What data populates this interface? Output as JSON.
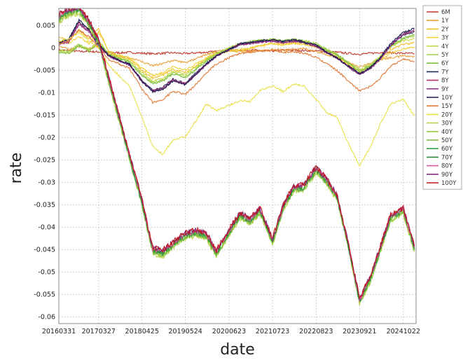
{
  "chart_data": {
    "type": "line",
    "xlabel": "date",
    "ylabel": "rate",
    "ylim": [
      -0.0615,
      0.0088
    ],
    "yticks": [
      0.005,
      0,
      -0.005,
      -0.01,
      -0.015,
      -0.02,
      -0.025,
      -0.03,
      -0.035,
      -0.04,
      -0.045,
      -0.05,
      -0.055,
      -0.06
    ],
    "ytick_labels": [
      "0.005",
      "0",
      "-0.005",
      "-0.01",
      "-0.015",
      "-0.02",
      "-0.025",
      "-0.03",
      "-0.035",
      "-0.04",
      "-0.045",
      "-0.05",
      "-0.055",
      "-0.06"
    ],
    "x_dates": [
      "2016-03-31",
      "2016-06-30",
      "2016-09-30",
      "2016-12-31",
      "2017-03-27",
      "2017-06-30",
      "2017-09-30",
      "2017-12-31",
      "2018-04-25",
      "2018-07-31",
      "2018-10-31",
      "2019-01-31",
      "2019-05-24",
      "2019-08-31",
      "2019-11-30",
      "2020-02-29",
      "2020-06-23",
      "2020-09-30",
      "2020-12-31",
      "2021-03-31",
      "2021-07-23",
      "2021-10-31",
      "2022-01-31",
      "2022-04-30",
      "2022-08-23",
      "2022-11-30",
      "2023-02-28",
      "2023-05-31",
      "2023-09-21",
      "2023-12-31",
      "2024-03-31",
      "2024-06-30",
      "2024-10-22",
      "2025-01-31"
    ],
    "xticks": [
      "20160331",
      "20170327",
      "20180425",
      "20190524",
      "20200623",
      "20210723",
      "20220823",
      "20230921",
      "20241022"
    ],
    "grid": true,
    "legend_placement": "right",
    "series": [
      {
        "name": "6M",
        "color": "#c0392b",
        "values": [
          -0.0005,
          -0.0006,
          -0.0008,
          -0.0008,
          -0.0009,
          -0.001,
          -0.0011,
          -0.001,
          -0.0012,
          -0.0013,
          -0.0012,
          -0.0011,
          -0.0013,
          -0.0011,
          -0.001,
          -0.0008,
          -0.0006,
          -0.0005,
          -0.0005,
          -0.0006,
          -0.0007,
          -0.0005,
          -0.0005,
          -0.0006,
          -0.0007,
          -0.0008,
          -0.001,
          -0.0012,
          -0.0014,
          -0.0012,
          -0.001,
          -0.0011,
          -0.0012,
          -0.0013
        ]
      },
      {
        "name": "1Y",
        "color": "#e8a33d",
        "values": [
          0.0005,
          -0.0004,
          0.0003,
          -0.0002,
          0.0004,
          -0.0012,
          -0.0018,
          -0.0022,
          -0.0031,
          -0.004,
          -0.0035,
          -0.0028,
          -0.0033,
          -0.0024,
          -0.0015,
          -0.0008,
          -0.0005,
          -0.0006,
          -0.0007,
          -0.0006,
          -0.0004,
          -0.0005,
          -0.0003,
          -0.0002,
          -0.0008,
          -0.0016,
          -0.0021,
          -0.0031,
          -0.0042,
          -0.0035,
          -0.0026,
          -0.0022,
          -0.0018,
          -0.002
        ]
      },
      {
        "name": "2Y",
        "color": "#f0c02e",
        "values": [
          0.0025,
          0.0015,
          0.004,
          0.002,
          0.0042,
          -0.0012,
          -0.0018,
          -0.0025,
          -0.005,
          -0.0068,
          -0.006,
          -0.0048,
          -0.0055,
          -0.004,
          -0.0025,
          -0.0012,
          -0.0008,
          -0.0008,
          -0.0002,
          0.0005,
          0.001,
          0.0008,
          0.0012,
          0.001,
          0.0005,
          -0.001,
          -0.0018,
          -0.0035,
          -0.0055,
          -0.004,
          -0.0022,
          -0.0005,
          0.0008,
          0.0012
        ]
      },
      {
        "name": "3Y",
        "color": "#f2d33a",
        "values": [
          0.0015,
          0.001,
          0.0025,
          0.001,
          0.0035,
          -0.0008,
          -0.0016,
          -0.0022,
          -0.0045,
          -0.0062,
          -0.0055,
          -0.0042,
          -0.005,
          -0.0035,
          -0.0022,
          -0.0012,
          -0.0006,
          -0.0004,
          0.0,
          0.0004,
          0.0008,
          0.0006,
          0.001,
          0.0008,
          0.0002,
          -0.0012,
          -0.002,
          -0.0036,
          -0.0052,
          -0.0042,
          -0.0026,
          -0.0012,
          -0.0002,
          0.0002
        ]
      },
      {
        "name": "4Y",
        "color": "#c8d84e",
        "values": [
          -0.0008,
          -0.001,
          0.0005,
          -0.0006,
          0.0012,
          -0.0014,
          -0.0022,
          -0.0028,
          -0.0055,
          -0.0075,
          -0.0068,
          -0.0052,
          -0.006,
          -0.0042,
          -0.0026,
          -0.0012,
          0.0,
          0.0008,
          0.0012,
          0.0016,
          0.0018,
          0.0014,
          0.0018,
          0.0015,
          0.0008,
          -0.0006,
          -0.0016,
          -0.0032,
          -0.0048,
          -0.0036,
          -0.0018,
          0.0002,
          0.0016,
          0.002
        ]
      },
      {
        "name": "5Y",
        "color": "#a8cf4a",
        "values": [
          -0.0005,
          -0.0008,
          0.0008,
          -0.0004,
          0.0015,
          -0.0014,
          -0.0023,
          -0.003,
          -0.006,
          -0.0078,
          -0.0072,
          -0.0055,
          -0.0064,
          -0.0046,
          -0.0028,
          -0.0014,
          0.0,
          0.001,
          0.0014,
          0.0018,
          0.0019,
          0.0016,
          0.002,
          0.0016,
          0.001,
          -0.0004,
          -0.0014,
          -0.003,
          -0.005,
          -0.0038,
          -0.002,
          0.0004,
          0.002,
          0.0026
        ]
      },
      {
        "name": "6Y",
        "color": "#7cc142",
        "values": [
          -0.001,
          -0.0012,
          0.0005,
          -0.0008,
          0.0012,
          -0.0016,
          -0.0025,
          -0.0032,
          -0.0062,
          -0.008,
          -0.0074,
          -0.0058,
          -0.0066,
          -0.0048,
          -0.003,
          -0.0016,
          -0.0002,
          0.0008,
          0.0012,
          0.0016,
          0.0018,
          0.0015,
          0.0018,
          0.0015,
          0.0008,
          -0.0006,
          -0.0016,
          -0.0032,
          -0.0052,
          -0.004,
          -0.002,
          0.0004,
          0.0022,
          0.003
        ]
      },
      {
        "name": "7Y",
        "color": "#1f2f5f",
        "values": [
          0.0012,
          0.0018,
          0.0058,
          0.004,
          0.0008,
          -0.0018,
          -0.0028,
          -0.0036,
          -0.0072,
          -0.0095,
          -0.0088,
          -0.007,
          -0.0078,
          -0.0056,
          -0.0035,
          -0.0018,
          -0.0004,
          0.0008,
          0.001,
          0.0014,
          0.0016,
          0.0012,
          0.0016,
          0.0012,
          0.0004,
          -0.001,
          -0.0022,
          -0.0038,
          -0.0058,
          -0.0044,
          -0.0022,
          0.0006,
          0.0028,
          0.0036
        ]
      },
      {
        "name": "8Y",
        "color": "#b0306a",
        "values": [
          0.001,
          0.0015,
          0.0055,
          0.0038,
          0.0006,
          -0.0018,
          -0.0028,
          -0.0037,
          -0.0074,
          -0.0096,
          -0.009,
          -0.0072,
          -0.008,
          -0.0058,
          -0.0036,
          -0.0018,
          -0.0004,
          0.0008,
          0.001,
          0.0013,
          0.0015,
          0.0012,
          0.0015,
          0.0012,
          0.0004,
          -0.0011,
          -0.0023,
          -0.0039,
          -0.0059,
          -0.0045,
          -0.0023,
          0.0006,
          0.003,
          0.0038
        ]
      },
      {
        "name": "9Y",
        "color": "#8e3a8e",
        "values": [
          0.0008,
          0.0013,
          0.0052,
          0.0036,
          0.0005,
          -0.0019,
          -0.0029,
          -0.0038,
          -0.0075,
          -0.0097,
          -0.0091,
          -0.0073,
          -0.0081,
          -0.0059,
          -0.0037,
          -0.0019,
          -0.0005,
          0.0007,
          0.001,
          0.0013,
          0.0015,
          0.0012,
          0.0015,
          0.0012,
          0.0004,
          -0.0011,
          -0.0023,
          -0.004,
          -0.006,
          -0.0046,
          -0.0024,
          0.0006,
          0.0031,
          0.004
        ]
      },
      {
        "name": "10Y",
        "color": "#1a1a4f",
        "values": [
          0.0012,
          0.002,
          0.0062,
          0.0042,
          0.0008,
          -0.0018,
          -0.0028,
          -0.0036,
          -0.0075,
          -0.0098,
          -0.0092,
          -0.0074,
          -0.0082,
          -0.0058,
          -0.0036,
          -0.0018,
          -0.0004,
          0.0009,
          0.0012,
          0.0016,
          0.0018,
          0.0014,
          0.0018,
          0.0014,
          0.0006,
          -0.001,
          -0.0022,
          -0.0038,
          -0.0058,
          -0.0044,
          -0.002,
          0.001,
          0.0034,
          0.0044
        ]
      },
      {
        "name": "15Y",
        "color": "#e07b39",
        "values": [
          0.001,
          0.0015,
          0.004,
          0.0025,
          0.0,
          -0.0026,
          -0.0036,
          -0.0046,
          -0.0092,
          -0.0122,
          -0.0116,
          -0.0096,
          -0.0104,
          -0.008,
          -0.0056,
          -0.0036,
          -0.0022,
          -0.0012,
          -0.001,
          -0.0007,
          -0.0006,
          -0.001,
          -0.0008,
          -0.0012,
          -0.002,
          -0.0036,
          -0.005,
          -0.0072,
          -0.0096,
          -0.0086,
          -0.0066,
          -0.004,
          -0.0025,
          -0.003
        ]
      },
      {
        "name": "20Y",
        "color": "#e9e04a",
        "values": [
          0.0015,
          0.002,
          0.0035,
          0.0015,
          0.0,
          -0.004,
          -0.0062,
          -0.0085,
          -0.0155,
          -0.022,
          -0.0238,
          -0.0205,
          -0.0198,
          -0.0162,
          -0.0125,
          -0.014,
          -0.0128,
          -0.0118,
          -0.012,
          -0.0095,
          -0.0085,
          -0.0098,
          -0.008,
          -0.0085,
          -0.0115,
          -0.0145,
          -0.0155,
          -0.0208,
          -0.0262,
          -0.022,
          -0.0168,
          -0.0125,
          -0.0115,
          -0.0152
        ]
      },
      {
        "name": "30Y",
        "color": "#bcd24a",
        "values": [
          0.0058,
          0.0072,
          0.0078,
          0.0048,
          0.0008,
          -0.008,
          -0.0165,
          -0.0248,
          -0.0352,
          -0.0458,
          -0.0465,
          -0.0445,
          -0.0425,
          -0.0418,
          -0.0425,
          -0.0465,
          -0.0418,
          -0.038,
          -0.0392,
          -0.037,
          -0.0438,
          -0.036,
          -0.032,
          -0.0318,
          -0.0278,
          -0.0305,
          -0.034,
          -0.0435,
          -0.0572,
          -0.052,
          -0.0452,
          -0.0385,
          -0.037,
          -0.0455
        ]
      },
      {
        "name": "40Y",
        "color": "#9acb44",
        "values": [
          0.0062,
          0.0075,
          0.0082,
          0.005,
          0.001,
          -0.0078,
          -0.0162,
          -0.0246,
          -0.035,
          -0.0456,
          -0.0463,
          -0.0443,
          -0.0423,
          -0.0416,
          -0.0423,
          -0.0463,
          -0.0416,
          -0.0378,
          -0.039,
          -0.0368,
          -0.0436,
          -0.0358,
          -0.0318,
          -0.0316,
          -0.0276,
          -0.0303,
          -0.0338,
          -0.0433,
          -0.057,
          -0.0518,
          -0.045,
          -0.0383,
          -0.0368,
          -0.0453
        ]
      },
      {
        "name": "50Y",
        "color": "#6fbb3d",
        "values": [
          0.0065,
          0.0078,
          0.0084,
          0.0052,
          0.0012,
          -0.0076,
          -0.016,
          -0.0244,
          -0.0348,
          -0.0454,
          -0.0461,
          -0.0441,
          -0.0421,
          -0.0414,
          -0.0421,
          -0.0461,
          -0.0414,
          -0.0376,
          -0.0388,
          -0.0366,
          -0.0434,
          -0.0356,
          -0.0316,
          -0.0314,
          -0.0274,
          -0.0301,
          -0.0336,
          -0.0431,
          -0.0568,
          -0.0516,
          -0.0448,
          -0.0381,
          -0.0366,
          -0.0451
        ]
      },
      {
        "name": "60Y",
        "color": "#3aa246",
        "values": [
          0.0068,
          0.008,
          0.0086,
          0.0054,
          0.0014,
          -0.0074,
          -0.0158,
          -0.0242,
          -0.0346,
          -0.0452,
          -0.0459,
          -0.0439,
          -0.0419,
          -0.0412,
          -0.0419,
          -0.0459,
          -0.0412,
          -0.0374,
          -0.0386,
          -0.0364,
          -0.0432,
          -0.0354,
          -0.0314,
          -0.0312,
          -0.0272,
          -0.0299,
          -0.0334,
          -0.0429,
          -0.0566,
          -0.0514,
          -0.0446,
          -0.0379,
          -0.0364,
          -0.0449
        ]
      },
      {
        "name": "70Y",
        "color": "#2b8a3a",
        "values": [
          0.007,
          0.0082,
          0.0088,
          0.0056,
          0.0016,
          -0.0072,
          -0.0156,
          -0.024,
          -0.0344,
          -0.045,
          -0.0457,
          -0.0437,
          -0.0417,
          -0.041,
          -0.0417,
          -0.0457,
          -0.041,
          -0.0372,
          -0.0384,
          -0.0362,
          -0.043,
          -0.0352,
          -0.0312,
          -0.031,
          -0.027,
          -0.0297,
          -0.0332,
          -0.0427,
          -0.0564,
          -0.0512,
          -0.0444,
          -0.0377,
          -0.0362,
          -0.0447
        ]
      },
      {
        "name": "80Y",
        "color": "#d85a9a",
        "values": [
          0.0072,
          0.0084,
          0.009,
          0.0058,
          0.0018,
          -0.007,
          -0.0154,
          -0.0238,
          -0.0342,
          -0.0448,
          -0.0455,
          -0.0435,
          -0.0415,
          -0.0408,
          -0.0415,
          -0.0455,
          -0.0408,
          -0.037,
          -0.0382,
          -0.036,
          -0.0428,
          -0.035,
          -0.031,
          -0.0308,
          -0.0268,
          -0.0295,
          -0.033,
          -0.0425,
          -0.0562,
          -0.051,
          -0.0442,
          -0.0375,
          -0.036,
          -0.0445
        ]
      },
      {
        "name": "90Y",
        "color": "#7d2e7d",
        "values": [
          0.0074,
          0.0086,
          0.0092,
          0.006,
          0.002,
          -0.0068,
          -0.0152,
          -0.0236,
          -0.034,
          -0.0446,
          -0.0453,
          -0.0433,
          -0.0413,
          -0.0406,
          -0.0413,
          -0.0453,
          -0.0406,
          -0.0368,
          -0.038,
          -0.0358,
          -0.0426,
          -0.0348,
          -0.0308,
          -0.0306,
          -0.0266,
          -0.0293,
          -0.0328,
          -0.0423,
          -0.056,
          -0.0508,
          -0.044,
          -0.0373,
          -0.0358,
          -0.0443
        ]
      },
      {
        "name": "100Y",
        "color": "#c4161c",
        "values": [
          0.0075,
          0.0087,
          0.0093,
          0.0061,
          0.0021,
          -0.0067,
          -0.0151,
          -0.0235,
          -0.0339,
          -0.0445,
          -0.0452,
          -0.0432,
          -0.0412,
          -0.0405,
          -0.0412,
          -0.0452,
          -0.0405,
          -0.0367,
          -0.0379,
          -0.0357,
          -0.0425,
          -0.0347,
          -0.0307,
          -0.0305,
          -0.0265,
          -0.0292,
          -0.0327,
          -0.0422,
          -0.0559,
          -0.0507,
          -0.0439,
          -0.0372,
          -0.0357,
          -0.0442
        ]
      }
    ]
  }
}
